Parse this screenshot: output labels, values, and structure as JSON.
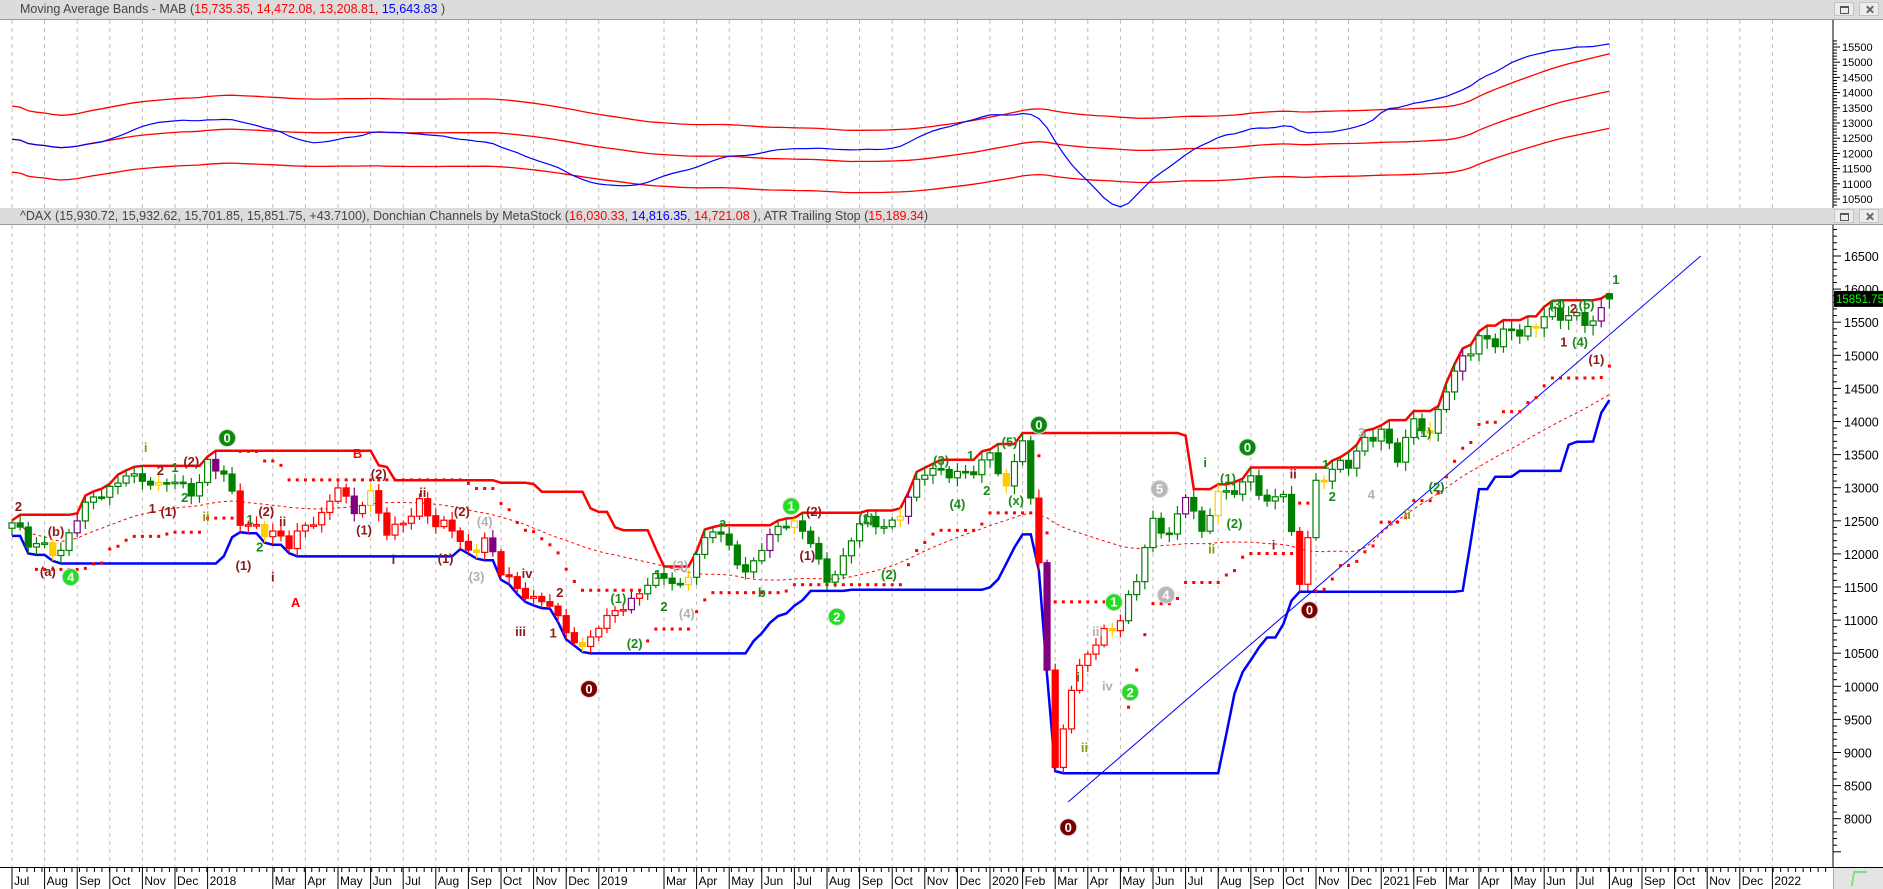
{
  "panels": {
    "mab_header": [
      {
        "text": "Moving Average Bands - MAB (",
        "color": "#444444"
      },
      {
        "text": "15,735.35",
        "color": "#ff0000"
      },
      {
        "text": ", ",
        "color": "#ff0000"
      },
      {
        "text": "14,472.08",
        "color": "#ff0000"
      },
      {
        "text": ", ",
        "color": "#ff0000"
      },
      {
        "text": "13,208.81",
        "color": "#ff0000"
      },
      {
        "text": ", ",
        "color": "#ff0000"
      },
      {
        "text": "15,643.83",
        "color": "#0000ff"
      },
      {
        "text": " )",
        "color": "#444444"
      }
    ],
    "price_header": [
      {
        "text": "^DAX (15,930.72, 15,932.62, 15,701.85, 15,851.75, +43.7100), Donchian Channels by MetaStock (",
        "color": "#444444"
      },
      {
        "text": "16,030.33",
        "color": "#ff0000"
      },
      {
        "text": ", ",
        "color": "#444444"
      },
      {
        "text": "14,816.35",
        "color": "#0000ff"
      },
      {
        "text": ", ",
        "color": "#444444"
      },
      {
        "text": "14,721.08",
        "color": "#ff0000"
      },
      {
        "text": " ), ATR Trailing Stop (",
        "color": "#444444"
      },
      {
        "text": "15,189.34",
        "color": "#ff0000"
      },
      {
        "text": ")",
        "color": "#444444"
      }
    ],
    "last_price_label": "15851.75"
  },
  "colors": {
    "up": "#008000",
    "down": "#ff0000",
    "donchian_upper": "#ff0000",
    "donchian_lower": "#0000ff",
    "atr": "#ff0000",
    "trendline": "#0000ff",
    "last_bg": "#000000",
    "last_fg": "#00ff00"
  },
  "chart_data": {
    "type": "candlestick",
    "symbol": "^DAX",
    "x_unit": "months since Jul 2017",
    "close_step_months": 0.5,
    "closes": [
      12450,
      12120,
      12160,
      12055,
      12520,
      12830,
      13000,
      13230,
      13100,
      13020,
      13100,
      12918,
      13400,
      13190,
      12450,
      12435,
      12350,
      12100,
      12400,
      12612,
      13050,
      12605,
      12900,
      12306,
      12500,
      12805,
      12400,
      12364,
      12050,
      12247,
      11700,
      11447,
      11350,
      11257,
      10800,
      10559,
      10900,
      11173,
      11300,
      11516,
      11650,
      11526,
      12000,
      12344,
      12100,
      11727,
      12100,
      12399,
      12450,
      12189,
      11600,
      11939,
      12450,
      12428,
      12500,
      12867,
      13200,
      13236,
      13250,
      13249,
      13500,
      12981,
      13750,
      11890,
      8750,
      9936,
      10500,
      10862,
      11000,
      11587,
      12500,
      12311,
      12900,
      12313,
      12900,
      12945,
      13200,
      12761,
      12900,
      11556,
      13100,
      13291,
      13300,
      13719,
      13900,
      13433,
      14000,
      13786,
      14500,
      15008,
      15250,
      15136,
      15400,
      15421,
      15600,
      15531,
      15600,
      15544,
      15851.75
    ],
    "last_ohlc": {
      "open": 15930.72,
      "high": 15932.62,
      "low": 15701.85,
      "close": 15851.75,
      "change": 43.71
    },
    "indicators": {
      "mab": {
        "upper": 15735.35,
        "middle": 14472.08,
        "lower": 13208.81,
        "signal": 15643.83
      },
      "donchian": {
        "upper": 16030.33,
        "lower": 14816.35,
        "mid": 14721.08
      },
      "atr_trailing_stop": 15189.34
    },
    "trendline": {
      "from": [
        32.4,
        8255
      ],
      "to": [
        51.8,
        16500
      ]
    },
    "price_ticks": [
      8000,
      8500,
      9000,
      9500,
      10000,
      10500,
      11000,
      11500,
      12000,
      12500,
      13000,
      13500,
      14000,
      14500,
      15000,
      15500,
      16000,
      16500
    ],
    "mab_ticks": [
      10500,
      11000,
      11500,
      12000,
      12500,
      13000,
      13500,
      14000,
      14500,
      15000,
      15500
    ],
    "x_ticks": [
      {
        "m": 0,
        "label": "Jul"
      },
      {
        "m": 1,
        "label": "Aug"
      },
      {
        "m": 2,
        "label": "Sep"
      },
      {
        "m": 3,
        "label": "Oct"
      },
      {
        "m": 4,
        "label": "Nov"
      },
      {
        "m": 5,
        "label": "Dec"
      },
      {
        "m": 6,
        "label": "2018"
      },
      {
        "m": 8,
        "label": "Mar"
      },
      {
        "m": 9,
        "label": "Apr"
      },
      {
        "m": 10,
        "label": "May"
      },
      {
        "m": 11,
        "label": "Jun"
      },
      {
        "m": 12,
        "label": "Jul"
      },
      {
        "m": 13,
        "label": "Aug"
      },
      {
        "m": 14,
        "label": "Sep"
      },
      {
        "m": 15,
        "label": "Oct"
      },
      {
        "m": 16,
        "label": "Nov"
      },
      {
        "m": 17,
        "label": "Dec"
      },
      {
        "m": 18,
        "label": "2019"
      },
      {
        "m": 20,
        "label": "Mar"
      },
      {
        "m": 21,
        "label": "Apr"
      },
      {
        "m": 22,
        "label": "May"
      },
      {
        "m": 23,
        "label": "Jun"
      },
      {
        "m": 24,
        "label": "Jul"
      },
      {
        "m": 25,
        "label": "Aug"
      },
      {
        "m": 26,
        "label": "Sep"
      },
      {
        "m": 27,
        "label": "Oct"
      },
      {
        "m": 28,
        "label": "Nov"
      },
      {
        "m": 29,
        "label": "Dec"
      },
      {
        "m": 30,
        "label": "2020"
      },
      {
        "m": 31,
        "label": "Feb"
      },
      {
        "m": 32,
        "label": "Mar"
      },
      {
        "m": 33,
        "label": "Apr"
      },
      {
        "m": 34,
        "label": "May"
      },
      {
        "m": 35,
        "label": "Jun"
      },
      {
        "m": 36,
        "label": "Jul"
      },
      {
        "m": 37,
        "label": "Aug"
      },
      {
        "m": 38,
        "label": "Sep"
      },
      {
        "m": 39,
        "label": "Oct"
      },
      {
        "m": 40,
        "label": "Nov"
      },
      {
        "m": 41,
        "label": "Dec"
      },
      {
        "m": 42,
        "label": "2021"
      },
      {
        "m": 43,
        "label": "Feb"
      },
      {
        "m": 44,
        "label": "Mar"
      },
      {
        "m": 45,
        "label": "Apr"
      },
      {
        "m": 46,
        "label": "May"
      },
      {
        "m": 47,
        "label": "Jun"
      },
      {
        "m": 48,
        "label": "Jul"
      },
      {
        "m": 49,
        "label": "Aug"
      },
      {
        "m": 50,
        "label": "Sep"
      },
      {
        "m": 51,
        "label": "Oct"
      },
      {
        "m": 52,
        "label": "Nov"
      },
      {
        "m": 53,
        "label": "Dec"
      },
      {
        "m": 54,
        "label": "2022"
      }
    ],
    "annotations": [
      {
        "t": 0.2,
        "p": 12710,
        "text": "2",
        "c": "#8b1a1a"
      },
      {
        "t": 1.35,
        "p": 12330,
        "text": "(b)",
        "c": "#8b1a1a"
      },
      {
        "t": 1.1,
        "p": 11730,
        "text": "(a)",
        "c": "#8b1a1a"
      },
      {
        "t": 1.8,
        "p": 11650,
        "text": "4",
        "c": "#22dd22",
        "circle": true
      },
      {
        "t": 4.1,
        "p": 13600,
        "text": "i",
        "c": "#8a9a10"
      },
      {
        "t": 4.55,
        "p": 13250,
        "text": "2",
        "c": "#8b1a1a"
      },
      {
        "t": 4.3,
        "p": 12680,
        "text": "1",
        "c": "#8b1a1a"
      },
      {
        "t": 4.8,
        "p": 12630,
        "text": "(1)",
        "c": "#8b1a1a"
      },
      {
        "t": 5.0,
        "p": 13300,
        "text": "1",
        "c": "#1a8a1a"
      },
      {
        "t": 5.3,
        "p": 12845,
        "text": "2",
        "c": "#1a8a1a"
      },
      {
        "t": 5.5,
        "p": 13390,
        "text": "(2)",
        "c": "#8b1a1a"
      },
      {
        "t": 5.95,
        "p": 12560,
        "text": "ii",
        "c": "#8a9a10"
      },
      {
        "t": 6.6,
        "p": 13750,
        "text": "0",
        "c": "#0a8a0a",
        "circle": true
      },
      {
        "t": 7.1,
        "p": 11820,
        "text": "(1)",
        "c": "#8b1a1a"
      },
      {
        "t": 7.3,
        "p": 12510,
        "text": "1",
        "c": "#1a8a1a"
      },
      {
        "t": 7.6,
        "p": 12100,
        "text": "2",
        "c": "#1a8a1a"
      },
      {
        "t": 7.8,
        "p": 12630,
        "text": "(2)",
        "c": "#8b1a1a"
      },
      {
        "t": 8.3,
        "p": 12480,
        "text": "ii",
        "c": "#8b1a1a"
      },
      {
        "t": 8.0,
        "p": 11640,
        "text": "i",
        "c": "#8b1a1a"
      },
      {
        "t": 8.7,
        "p": 11260,
        "text": "A",
        "c": "#ff0000"
      },
      {
        "t": 10.6,
        "p": 13510,
        "text": "B",
        "c": "#ff0000"
      },
      {
        "t": 11.25,
        "p": 13200,
        "text": "(2)",
        "c": "#8b1a1a"
      },
      {
        "t": 10.8,
        "p": 12350,
        "text": "(1)",
        "c": "#8b1a1a"
      },
      {
        "t": 12.6,
        "p": 12920,
        "text": "ii",
        "c": "#8b1a1a"
      },
      {
        "t": 11.7,
        "p": 11910,
        "text": "i",
        "c": "#8b1a1a"
      },
      {
        "t": 13.8,
        "p": 12630,
        "text": "(2)",
        "c": "#8b1a1a"
      },
      {
        "t": 13.3,
        "p": 11920,
        "text": "(1)",
        "c": "#8b1a1a"
      },
      {
        "t": 14.5,
        "p": 12480,
        "text": "(4)",
        "c": "#b0b0b0"
      },
      {
        "t": 14.25,
        "p": 11650,
        "text": "(3)",
        "c": "#b0b0b0"
      },
      {
        "t": 15.8,
        "p": 11700,
        "text": "iv",
        "c": "#8b1a1a"
      },
      {
        "t": 15.6,
        "p": 10820,
        "text": "iii",
        "c": "#8b1a1a"
      },
      {
        "t": 16.8,
        "p": 11410,
        "text": "2",
        "c": "#8b1a1a"
      },
      {
        "t": 16.6,
        "p": 10800,
        "text": "1",
        "c": "#8b1a1a"
      },
      {
        "t": 17.7,
        "p": 9960,
        "text": "0",
        "c": "#7a0000",
        "circle": true
      },
      {
        "t": 18.6,
        "p": 11320,
        "text": "(1)",
        "c": "#1a8a1a"
      },
      {
        "t": 19.1,
        "p": 10640,
        "text": "(2)",
        "c": "#1a8a1a"
      },
      {
        "t": 19.8,
        "p": 11680,
        "text": "1",
        "c": "#1a8a1a"
      },
      {
        "t": 20.0,
        "p": 11200,
        "text": "2",
        "c": "#1a8a1a"
      },
      {
        "t": 20.5,
        "p": 11820,
        "text": "(3)",
        "c": "#b0b0b0"
      },
      {
        "t": 20.7,
        "p": 11090,
        "text": "(4)",
        "c": "#b0b0b0"
      },
      {
        "t": 21.8,
        "p": 12470,
        "text": "a",
        "c": "#1a8a1a"
      },
      {
        "t": 23.0,
        "p": 11410,
        "text": "b",
        "c": "#1a8a1a"
      },
      {
        "t": 23.9,
        "p": 12720,
        "text": "1",
        "c": "#22dd22",
        "circle": true
      },
      {
        "t": 24.6,
        "p": 12630,
        "text": "(2)",
        "c": "#8b1a1a"
      },
      {
        "t": 24.4,
        "p": 11970,
        "text": "(1)",
        "c": "#8b1a1a"
      },
      {
        "t": 25.3,
        "p": 11050,
        "text": "2",
        "c": "#22dd22",
        "circle": true
      },
      {
        "t": 26.2,
        "p": 12530,
        "text": "(1)",
        "c": "#1a8a1a"
      },
      {
        "t": 26.9,
        "p": 11680,
        "text": "(2)",
        "c": "#1a8a1a"
      },
      {
        "t": 28.5,
        "p": 13400,
        "text": "(3)",
        "c": "#1a8a1a"
      },
      {
        "t": 29.0,
        "p": 12750,
        "text": "(4)",
        "c": "#1a8a1a"
      },
      {
        "t": 29.4,
        "p": 13480,
        "text": "1",
        "c": "#1a8a1a"
      },
      {
        "t": 30.6,
        "p": 13680,
        "text": "(5)",
        "c": "#1a8a1a"
      },
      {
        "t": 29.9,
        "p": 12950,
        "text": "2",
        "c": "#1a8a1a"
      },
      {
        "t": 30.8,
        "p": 12800,
        "text": "(x)",
        "c": "#1a8a1a"
      },
      {
        "t": 31.5,
        "p": 13950,
        "text": "0",
        "c": "#0a8a0a",
        "circle": true
      },
      {
        "t": 32.4,
        "p": 7870,
        "text": "0",
        "c": "#7a0000",
        "circle": true
      },
      {
        "t": 32.7,
        "p": 10130,
        "text": "i",
        "c": "#1a8a1a"
      },
      {
        "t": 32.9,
        "p": 9070,
        "text": "ii",
        "c": "#8a9a10"
      },
      {
        "t": 33.3,
        "p": 10820,
        "text": "iii",
        "c": "#b0b0b0"
      },
      {
        "t": 33.6,
        "p": 10000,
        "text": "iv",
        "c": "#b0b0b0"
      },
      {
        "t": 33.8,
        "p": 11270,
        "text": "1",
        "c": "#22dd22",
        "circle": true
      },
      {
        "t": 34.3,
        "p": 9910,
        "text": "2",
        "c": "#22dd22",
        "circle": true
      },
      {
        "t": 35.2,
        "p": 12980,
        "text": "5",
        "c": "#b8b8b8",
        "circle": true
      },
      {
        "t": 35.4,
        "p": 11380,
        "text": "4",
        "c": "#b8b8b8",
        "circle": true
      },
      {
        "t": 36.6,
        "p": 13370,
        "text": "i",
        "c": "#1a8a1a"
      },
      {
        "t": 36.8,
        "p": 12070,
        "text": "ii",
        "c": "#8a9a10"
      },
      {
        "t": 37.3,
        "p": 13130,
        "text": "(1)",
        "c": "#1a8a1a"
      },
      {
        "t": 37.5,
        "p": 12450,
        "text": "(2)",
        "c": "#1a8a1a"
      },
      {
        "t": 37.9,
        "p": 13610,
        "text": "0",
        "c": "#0a8a0a",
        "circle": true
      },
      {
        "t": 38.7,
        "p": 12130,
        "text": "i",
        "c": "#8b1a1a"
      },
      {
        "t": 39.3,
        "p": 13200,
        "text": "ii",
        "c": "#8b1a1a"
      },
      {
        "t": 39.8,
        "p": 11150,
        "text": "0",
        "c": "#7a0000",
        "circle": true
      },
      {
        "t": 40.3,
        "p": 13340,
        "text": "1",
        "c": "#1a8a1a"
      },
      {
        "t": 40.5,
        "p": 12860,
        "text": "2",
        "c": "#1a8a1a"
      },
      {
        "t": 41.4,
        "p": 13830,
        "text": "3",
        "c": "#b0b0b0"
      },
      {
        "t": 41.7,
        "p": 12890,
        "text": "4",
        "c": "#b0b0b0"
      },
      {
        "t": 42.1,
        "p": 13810,
        "text": "i",
        "c": "#1a8a1a"
      },
      {
        "t": 42.8,
        "p": 12590,
        "text": "ii",
        "c": "#8a9a10"
      },
      {
        "t": 43.3,
        "p": 13830,
        "text": "(1)",
        "c": "#1a8a1a"
      },
      {
        "t": 43.7,
        "p": 13000,
        "text": "(2)",
        "c": "#1a8a1a"
      },
      {
        "t": 47.4,
        "p": 15760,
        "text": "(3)",
        "c": "#1a8a1a"
      },
      {
        "t": 47.9,
        "p": 15700,
        "text": "2",
        "c": "#8b1a1a"
      },
      {
        "t": 48.3,
        "p": 15760,
        "text": "(5)",
        "c": "#1a8a1a"
      },
      {
        "t": 47.6,
        "p": 15190,
        "text": "1",
        "c": "#8b1a1a"
      },
      {
        "t": 48.1,
        "p": 15190,
        "text": "(4)",
        "c": "#1a8a1a"
      },
      {
        "t": 48.6,
        "p": 14930,
        "text": "(1)",
        "c": "#8b1a1a"
      },
      {
        "t": 49.2,
        "p": 16140,
        "text": "1",
        "c": "#1a8a1a"
      }
    ]
  }
}
